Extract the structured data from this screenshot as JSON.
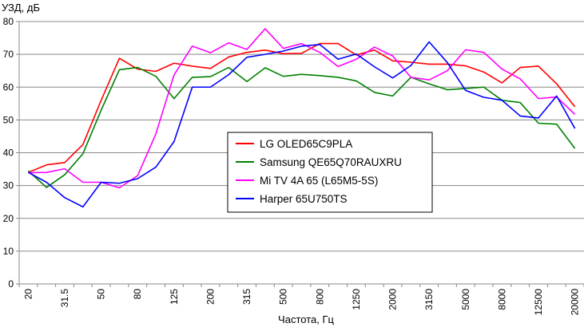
{
  "chart_data": {
    "type": "line",
    "title": "",
    "ylabel": "УЗД, дБ",
    "xlabel": "Частота, Гц",
    "ylim": [
      0,
      80
    ],
    "yticks": [
      0,
      10,
      20,
      30,
      40,
      50,
      60,
      70,
      80
    ],
    "grid": "y",
    "legend_position": "center",
    "x": [
      "20",
      "25",
      "31.5",
      "40",
      "50",
      "63",
      "80",
      "100",
      "125",
      "160",
      "200",
      "250",
      "315",
      "400",
      "500",
      "630",
      "800",
      "1000",
      "1250",
      "1600",
      "2000",
      "2500",
      "3150",
      "4000",
      "5000",
      "6300",
      "8000",
      "10000",
      "12500",
      "16000",
      "20000"
    ],
    "x_tick_labels": [
      "20",
      "",
      "31.5",
      "",
      "50",
      "",
      "80",
      "",
      "125",
      "",
      "200",
      "",
      "315",
      "",
      "500",
      "",
      "800",
      "",
      "1250",
      "",
      "2000",
      "",
      "3150",
      "",
      "5000",
      "",
      "8000",
      "",
      "12500",
      "",
      "20000"
    ],
    "series": [
      {
        "name": "LG OLED65C9PLA",
        "color": "#ff0000",
        "values": [
          34,
          36.3,
          37,
          42.5,
          56,
          68.8,
          65.5,
          64.8,
          67.3,
          66.4,
          65.7,
          69.2,
          70.6,
          71.3,
          70.2,
          70.3,
          73.3,
          73.3,
          69.8,
          71.3,
          68,
          67.6,
          67,
          67,
          66.5,
          64.6,
          61.3,
          66,
          66.4,
          61,
          54
        ]
      },
      {
        "name": "Samsung QE65Q70RAUXRU",
        "color": "#008000",
        "values": [
          34.5,
          29.4,
          33.3,
          39.7,
          53,
          65.3,
          66,
          63.3,
          56.5,
          63,
          63.2,
          66,
          61.7,
          65.9,
          63.3,
          63.9,
          63.5,
          63,
          61.9,
          58.4,
          57.3,
          63,
          61,
          59.2,
          59.6,
          60,
          56,
          55.3,
          49,
          48.7,
          41.3
        ]
      },
      {
        "name": "Mi TV 4A 65 (L65M5-5S)",
        "color": "#ff00ff",
        "values": [
          33.9,
          34,
          35.1,
          31,
          31,
          29.3,
          33,
          45.7,
          63.7,
          72.5,
          70.5,
          73.5,
          71.5,
          77.8,
          71.8,
          73.3,
          70.6,
          66.3,
          68.5,
          72.2,
          69.5,
          63,
          62.2,
          65,
          71.4,
          70.6,
          65.5,
          62.5,
          56.5,
          57,
          51.7
        ]
      },
      {
        "name": "Harper 65U750TS",
        "color": "#0000ff",
        "values": [
          34,
          31,
          26.3,
          23.5,
          31,
          30.7,
          32.1,
          35.6,
          43.4,
          60,
          60,
          63.8,
          69.1,
          70,
          71,
          72.5,
          73,
          68.5,
          70.1,
          66.2,
          62.8,
          66.6,
          73.8,
          67.5,
          59,
          56.9,
          56,
          51.2,
          50.6,
          57.3,
          47.4
        ]
      }
    ]
  }
}
